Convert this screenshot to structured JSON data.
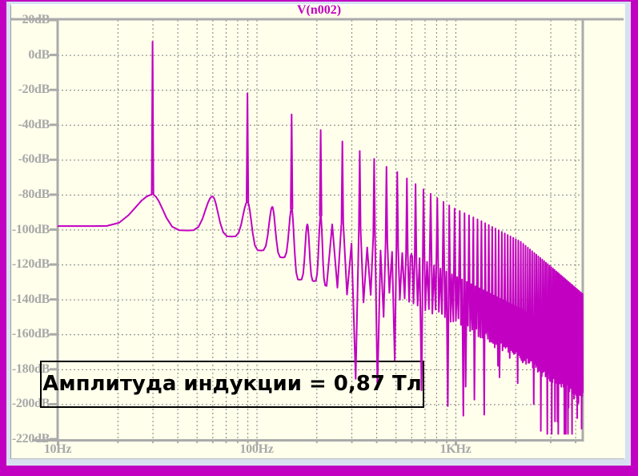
{
  "window": {
    "border_color": "#C100C1",
    "margin_color": "#D7E0F0",
    "pane_color": "#FFFFEC"
  },
  "chart_data": {
    "type": "line",
    "title": "V(n002)",
    "title_color": "#C100C1",
    "grid_color": "#808080",
    "frame_color": "#ABABAB",
    "label_color": "#A8A8A8",
    "x_axis": {
      "scale": "log",
      "unit": "Hz",
      "min_hz": 10,
      "max_hz": 4365,
      "tick_labels": [
        "10Hz",
        "100Hz",
        "1KHz"
      ],
      "tick_values_hz": [
        10,
        100,
        1000
      ]
    },
    "y_axis": {
      "unit": "dB",
      "min_db": -220,
      "max_db": 20,
      "step_db": 20,
      "tick_labels": [
        "20dB",
        "0dB",
        "-20dB",
        "-40dB",
        "-60dB",
        "-80dB",
        "-100dB",
        "-120dB",
        "-140dB",
        "-160dB",
        "-180dB",
        "-200dB",
        "-220dB"
      ]
    },
    "series": {
      "name": "V(n002)",
      "color": "#C100C1",
      "fundamental_hz": 30,
      "harmonic_step_hz": 30,
      "max_harmonic": 145,
      "baseline_db": -98,
      "odd_harmonic_envelope_db": [
        [
          30,
          7.6
        ],
        [
          90,
          -22
        ],
        [
          150,
          -34
        ],
        [
          210,
          -43
        ],
        [
          270,
          -49.5
        ],
        [
          330,
          -55
        ],
        [
          390,
          -59.5
        ],
        [
          450,
          -64
        ],
        [
          510,
          -67
        ],
        [
          630,
          -74
        ],
        [
          810,
          -82
        ],
        [
          990,
          -88
        ],
        [
          1340,
          -95
        ],
        [
          2130,
          -107
        ],
        [
          3000,
          -121
        ],
        [
          4365,
          -137
        ]
      ],
      "even_harmonic_envelope_db": [
        [
          60,
          -81
        ],
        [
          120,
          -87
        ],
        [
          180,
          -97
        ],
        [
          240,
          -97
        ],
        [
          300,
          -108
        ],
        [
          420,
          -112
        ],
        [
          600,
          -114
        ],
        [
          900,
          -124
        ],
        [
          1340,
          -134
        ],
        [
          2000,
          -144
        ],
        [
          3000,
          -155
        ],
        [
          4365,
          -166
        ]
      ],
      "skirt_envelope_db": [
        [
          30,
          -80
        ],
        [
          60,
          -81
        ],
        [
          90,
          -84
        ],
        [
          120,
          -87
        ],
        [
          150,
          -88
        ],
        [
          210,
          -92
        ],
        [
          270,
          -96
        ],
        [
          330,
          -100
        ],
        [
          400,
          -104
        ],
        [
          500,
          -110
        ],
        [
          650,
          -118
        ],
        [
          900,
          -128
        ],
        [
          1300,
          -138
        ],
        [
          2000,
          -150
        ],
        [
          3000,
          -162
        ],
        [
          4365,
          -172
        ]
      ],
      "valley_envelope_db": [
        [
          12,
          -98
        ],
        [
          15,
          -98
        ],
        [
          45,
          -100.5
        ],
        [
          75,
          -104
        ],
        [
          105,
          -112
        ],
        [
          135,
          -116
        ],
        [
          170,
          -125
        ],
        [
          210,
          -131
        ],
        [
          300,
          -133
        ],
        [
          400,
          -135
        ],
        [
          550,
          -137
        ],
        [
          700,
          -142
        ],
        [
          1000,
          -150
        ],
        [
          1500,
          -160
        ],
        [
          2200,
          -172
        ],
        [
          3000,
          -182
        ],
        [
          4365,
          -192
        ]
      ],
      "deep_notches_hz_db": [
        [
          440,
          -150
        ],
        [
          685,
          -192
        ],
        [
          925,
          -162
        ],
        [
          1390,
          -206
        ],
        [
          1640,
          -178
        ],
        [
          2050,
          -188
        ],
        [
          2480,
          -200
        ],
        [
          2900,
          -196
        ],
        [
          3260,
          -210
        ],
        [
          3700,
          -202
        ],
        [
          4100,
          -208
        ]
      ]
    },
    "annotation": {
      "text": "Амплитуда индукции = 0,87 Тл",
      "border_color": "#000000",
      "text_color": "#000000"
    }
  }
}
